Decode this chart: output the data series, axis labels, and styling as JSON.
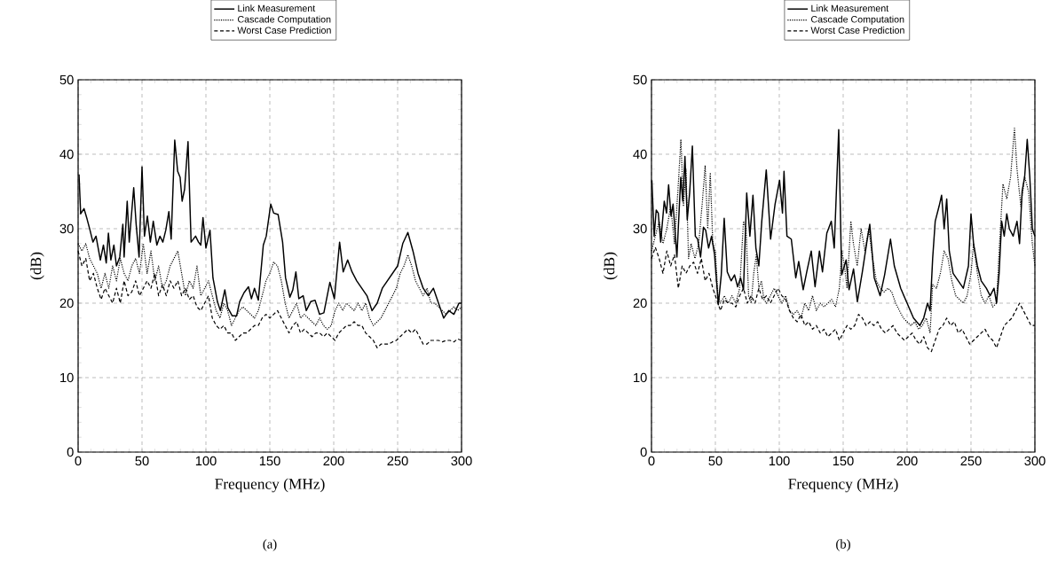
{
  "chart_data": [
    {
      "type": "line",
      "xlabel": "Frequency (MHz)",
      "ylabel": "(dB)",
      "xlim": [
        0,
        300
      ],
      "ylim": [
        0,
        50
      ],
      "xticks": [
        0,
        50,
        100,
        150,
        200,
        250,
        300
      ],
      "yticks": [
        0,
        10,
        20,
        30,
        40,
        50
      ],
      "grid": true,
      "legend": "top",
      "annotations": [
        "(a)"
      ],
      "series": [
        {
          "name": "Link Measurement",
          "color": "#000000",
          "line_style": "solid",
          "x": [
            0.7,
            2,
            4.6,
            7,
            9.3,
            11.6,
            14,
            17.4,
            19.8,
            22,
            23.7,
            25.6,
            28,
            30,
            32.6,
            35,
            36,
            38.4,
            40,
            43.5,
            45.4,
            47.7,
            50,
            51.9,
            54.2,
            56.5,
            58.8,
            61.6,
            64,
            66.3,
            68.6,
            71,
            72.8,
            75.6,
            77.9,
            79.8,
            81.4,
            83.3,
            86,
            88.4,
            91.9,
            94.2,
            96,
            97.7,
            100,
            103.2,
            105.5,
            109,
            111.3,
            114.8,
            117.1,
            120.6,
            124,
            126.4,
            129.8,
            133.3,
            135.6,
            138,
            141,
            144.9,
            147.2,
            150.7,
            153,
            156.5,
            160,
            162.3,
            165.7,
            168,
            170.4,
            172.7,
            176.1,
            178.5,
            182,
            185.4,
            188.9,
            192.3,
            197,
            200.5,
            204.6,
            207.4,
            210.9,
            214.3,
            218,
            222,
            226,
            230,
            234,
            238,
            242,
            246,
            250,
            254,
            258,
            262,
            266,
            270,
            274,
            278,
            282,
            286,
            290,
            294,
            298,
            300
          ],
          "values": [
            37.3,
            32,
            32.7,
            31.3,
            29.8,
            28.2,
            29,
            25.8,
            27.8,
            25.4,
            29.4,
            25.8,
            27.8,
            25,
            26.2,
            30.6,
            26.2,
            33.7,
            28.2,
            35.5,
            30.6,
            26.2,
            38.3,
            29,
            31.7,
            28.2,
            31,
            27.8,
            29,
            28.2,
            29.8,
            32.3,
            28.6,
            41.9,
            37.7,
            36.9,
            33.7,
            35.3,
            41.7,
            28.2,
            29,
            28.2,
            27.8,
            31.5,
            27.4,
            29.8,
            23.4,
            20.2,
            19,
            21.8,
            19.4,
            18.3,
            18.3,
            20.2,
            21.4,
            22.2,
            20.6,
            22,
            20.4,
            27.8,
            29,
            33.3,
            32.1,
            31.9,
            28.2,
            23.4,
            20.8,
            21.8,
            24.2,
            20.6,
            21,
            19,
            20.2,
            20.4,
            18.5,
            18.7,
            22.8,
            20.6,
            28.2,
            24.2,
            25.8,
            24.2,
            23,
            22,
            21,
            19,
            20,
            22,
            23,
            24,
            25,
            28,
            29.5,
            27,
            24,
            22,
            21,
            22,
            20,
            18,
            19,
            18.5,
            20,
            20
          ]
        },
        {
          "name": "Cascade Computation",
          "color": "#000000",
          "line_style": "dotted",
          "x": [
            0,
            3,
            6,
            9,
            12,
            15,
            18,
            21,
            24,
            27,
            30,
            33,
            36,
            39,
            42,
            45,
            48,
            51,
            54,
            57,
            60,
            63,
            66,
            69,
            72,
            75,
            78,
            81,
            84,
            87,
            90,
            93,
            96,
            99,
            102,
            105,
            108,
            111,
            114,
            117,
            120,
            123,
            126,
            129,
            132,
            135,
            138,
            141,
            144,
            147,
            150,
            153,
            156,
            159,
            162,
            165,
            168,
            171,
            174,
            177,
            180,
            183,
            186,
            189,
            192,
            195,
            198,
            201,
            204,
            207,
            210,
            213,
            216,
            219,
            222,
            225,
            228,
            231,
            234,
            237,
            240,
            243,
            246,
            249,
            252,
            255,
            258,
            261,
            264,
            267,
            270,
            273,
            276,
            279,
            282,
            285,
            288,
            291,
            294,
            297,
            300
          ],
          "values": [
            28,
            27,
            28,
            26,
            25,
            24,
            22,
            24,
            22,
            25,
            23,
            26,
            24,
            23,
            25,
            26,
            24,
            28,
            24,
            27,
            23,
            25,
            22,
            23,
            25,
            26,
            27,
            24,
            21,
            23,
            22,
            25,
            21,
            22,
            23,
            21,
            19,
            18,
            20,
            19,
            17,
            18,
            19,
            19.5,
            19,
            18.5,
            18,
            19,
            21,
            23,
            24,
            25.5,
            25,
            23,
            20,
            18,
            19,
            20,
            18,
            18.5,
            18,
            17.5,
            17,
            18,
            17,
            16.5,
            17,
            19,
            20,
            19,
            20,
            19.5,
            19,
            20,
            19,
            20,
            18,
            17,
            17.5,
            18,
            19,
            20,
            21,
            22,
            24,
            25,
            26.5,
            25,
            23,
            22,
            21,
            22,
            20,
            20,
            19.5,
            19,
            18.5,
            19,
            19.5,
            19,
            19.5
          ]
        },
        {
          "name": "Worst Case Prediction",
          "color": "#000000",
          "line_style": "dashed",
          "x": [
            0,
            3,
            6,
            9,
            12,
            15,
            18,
            21,
            24,
            27,
            30,
            33,
            36,
            39,
            42,
            45,
            48,
            51,
            54,
            57,
            60,
            63,
            66,
            69,
            72,
            75,
            78,
            81,
            84,
            87,
            90,
            93,
            96,
            99,
            102,
            105,
            108,
            111,
            114,
            117,
            120,
            123,
            126,
            129,
            132,
            135,
            138,
            141,
            144,
            147,
            150,
            153,
            156,
            159,
            162,
            165,
            168,
            171,
            174,
            177,
            180,
            183,
            186,
            189,
            192,
            195,
            198,
            201,
            204,
            207,
            210,
            213,
            216,
            219,
            222,
            225,
            228,
            231,
            234,
            237,
            240,
            243,
            246,
            249,
            252,
            255,
            258,
            261,
            264,
            267,
            270,
            273,
            276,
            279,
            282,
            285,
            288,
            291,
            294,
            297,
            300
          ],
          "values": [
            27,
            25,
            26,
            23,
            24,
            22,
            20.5,
            22,
            21,
            20,
            22,
            20,
            23,
            21,
            21.5,
            23,
            21,
            22,
            23,
            22,
            24,
            21,
            22.5,
            21,
            23,
            22,
            23,
            21,
            22,
            20.5,
            21,
            19.5,
            19,
            20,
            21,
            18,
            17,
            16.5,
            17,
            16,
            16,
            15,
            15.5,
            16,
            16,
            16.5,
            17,
            17,
            18,
            18.5,
            18,
            18.5,
            19,
            18,
            17,
            16,
            17,
            17.5,
            16,
            16.5,
            16,
            15.5,
            16,
            16,
            15.5,
            16,
            15.5,
            15,
            16,
            16.5,
            17,
            17,
            17.5,
            17,
            17,
            16,
            15.5,
            15,
            14,
            14.5,
            14.5,
            14.5,
            14.8,
            15,
            15.5,
            16,
            16.5,
            16,
            16.5,
            15.5,
            14.5,
            14.5,
            15,
            15,
            15,
            14.8,
            15,
            15,
            14.8,
            15.2,
            15
          ]
        }
      ]
    },
    {
      "type": "line",
      "xlabel": "Frequency (MHz)",
      "ylabel": "(dB)",
      "xlim": [
        0,
        300
      ],
      "ylim": [
        0,
        50
      ],
      "xticks": [
        0,
        50,
        100,
        150,
        200,
        250,
        300
      ],
      "yticks": [
        0,
        10,
        20,
        30,
        40,
        50
      ],
      "grid": true,
      "legend": "top",
      "annotations": [
        "(b)"
      ],
      "series": [
        {
          "name": "Link Measurement",
          "color": "#000000",
          "line_style": "solid",
          "x": [
            0.3,
            2.1,
            3.7,
            5.3,
            7.2,
            10,
            11.8,
            13.4,
            15.3,
            16.9,
            19.9,
            22.9,
            24.5,
            26.2,
            28,
            29.9,
            32,
            34.3,
            36.1,
            38.4,
            40.7,
            42.4,
            44.7,
            47,
            49.3,
            52.3,
            54.6,
            56.9,
            59.3,
            62.3,
            65,
            67.4,
            69.7,
            72,
            74.5,
            77,
            79.4,
            81.7,
            84,
            86.3,
            89.8,
            93.2,
            96.7,
            100.2,
            102.5,
            103.7,
            106,
            109.4,
            112.9,
            115.2,
            118.7,
            121.5,
            125,
            128,
            131.4,
            133.8,
            137.2,
            140.7,
            143,
            146.5,
            148.8,
            152.3,
            154.6,
            158.1,
            161.1,
            165,
            168.5,
            170.8,
            174.3,
            178.9,
            182.4,
            187,
            190,
            195,
            200,
            205,
            210,
            213,
            216,
            218,
            220,
            222,
            225,
            227,
            229,
            231,
            233,
            236,
            240,
            244,
            248,
            250,
            252,
            255,
            258,
            262,
            265,
            268,
            270,
            272,
            274,
            276,
            278,
            280,
            283,
            286,
            288,
            290,
            292,
            294,
            296,
            298,
            300
          ],
          "values": [
            36.5,
            29,
            32.5,
            32.1,
            28.2,
            33.7,
            32.1,
            35.9,
            31.7,
            33.3,
            26.2,
            36.9,
            33.7,
            39.7,
            31.2,
            34.9,
            41.1,
            29,
            28.6,
            26.2,
            30.2,
            29.8,
            27.4,
            29,
            26.6,
            19.8,
            23.8,
            31.4,
            24.2,
            23,
            23.8,
            22.2,
            23.4,
            21.8,
            34.8,
            29,
            34.5,
            27.4,
            25,
            31,
            37.9,
            28.6,
            33.3,
            36.5,
            32.1,
            37.7,
            29,
            28.6,
            23.4,
            25.6,
            21.8,
            24.2,
            27,
            22.2,
            27,
            24.2,
            29.4,
            31,
            27.4,
            43.3,
            23.8,
            25.8,
            21.8,
            24.6,
            20.2,
            24.2,
            28.2,
            30.6,
            23.4,
            21,
            23.8,
            28.6,
            25,
            22,
            20,
            18,
            17,
            18,
            20,
            19,
            26,
            31,
            33,
            34.5,
            30,
            34,
            27,
            24,
            23,
            22,
            25,
            32,
            28,
            25,
            23,
            22,
            21,
            22,
            20,
            24,
            31,
            29,
            32,
            30,
            29,
            31,
            28,
            35,
            37,
            42,
            37,
            30,
            29
          ]
        },
        {
          "name": "Cascade Computation",
          "color": "#000000",
          "line_style": "dotted",
          "x": [
            0,
            3,
            6,
            9,
            12,
            15,
            18,
            21,
            23,
            25,
            27,
            29,
            31,
            34,
            37,
            40,
            42,
            44,
            46,
            48,
            50,
            52,
            54,
            57,
            60,
            63,
            66,
            69,
            72,
            74,
            76,
            78,
            80,
            82,
            84,
            86,
            88,
            90,
            93,
            96,
            99,
            102,
            105,
            108,
            111,
            114,
            117,
            120,
            123,
            126,
            129,
            132,
            135,
            138,
            141,
            144,
            147,
            149,
            151,
            153,
            156,
            158,
            161,
            164,
            167,
            170,
            173,
            176,
            179,
            182,
            185,
            188,
            191,
            194,
            197,
            200,
            203,
            206,
            209,
            212,
            215,
            218,
            220,
            223,
            226,
            229,
            232,
            235,
            238,
            241,
            244,
            247,
            250,
            252,
            255,
            258,
            261,
            264,
            267,
            270,
            272,
            275,
            278,
            281,
            284,
            286,
            289,
            292,
            295,
            298,
            300
          ],
          "values": [
            27,
            29,
            31,
            28,
            30,
            33,
            28,
            36,
            42,
            33,
            38,
            26,
            28,
            26,
            28,
            34,
            38.5,
            30,
            37.5,
            28,
            27,
            21,
            20,
            21,
            20,
            21,
            20,
            22,
            31,
            30,
            21,
            20,
            24,
            26.5,
            22,
            23,
            20.5,
            20,
            21,
            22,
            21,
            20,
            21,
            19,
            18.5,
            19,
            18,
            20,
            19,
            21,
            19,
            20,
            19.5,
            20,
            20.5,
            19.5,
            22,
            27,
            25,
            22,
            31,
            28,
            25,
            30,
            27,
            30,
            26,
            23,
            22,
            21.5,
            22,
            21.5,
            20,
            19,
            18,
            17.5,
            17,
            17.5,
            16.5,
            17,
            18,
            16,
            22.5,
            22,
            24,
            27,
            26,
            23,
            21,
            20.5,
            20,
            21,
            24,
            28,
            24,
            21,
            20,
            21,
            19.5,
            20,
            27,
            36,
            34,
            37,
            43.5,
            38,
            33,
            37,
            35,
            28,
            25
          ]
        },
        {
          "name": "Worst Case Prediction",
          "color": "#000000",
          "line_style": "dashed",
          "x": [
            0,
            3,
            6,
            9,
            12,
            15,
            18,
            21,
            24,
            27,
            30,
            33,
            36,
            39,
            42,
            45,
            48,
            51,
            54,
            57,
            60,
            63,
            66,
            69,
            72,
            75,
            78,
            81,
            84,
            87,
            90,
            93,
            96,
            99,
            102,
            105,
            108,
            111,
            114,
            117,
            120,
            123,
            126,
            129,
            132,
            135,
            138,
            141,
            144,
            147,
            150,
            153,
            156,
            159,
            162,
            165,
            168,
            171,
            174,
            177,
            180,
            183,
            186,
            189,
            192,
            195,
            198,
            201,
            204,
            207,
            210,
            213,
            216,
            219,
            222,
            225,
            228,
            231,
            234,
            237,
            240,
            243,
            246,
            249,
            252,
            255,
            258,
            261,
            264,
            267,
            270,
            273,
            276,
            279,
            282,
            285,
            288,
            291,
            294,
            297,
            300
          ],
          "values": [
            26,
            27.5,
            26,
            24,
            27,
            25,
            26.5,
            22,
            25,
            24,
            25,
            25.5,
            24,
            26,
            23,
            24,
            22,
            20.5,
            19,
            20.5,
            20,
            20,
            19.5,
            21,
            22,
            20,
            21,
            20,
            22,
            20.5,
            21,
            20,
            21,
            22,
            21,
            20.5,
            19,
            18,
            17.5,
            18.5,
            17,
            17.5,
            16.5,
            17,
            16,
            16.5,
            15.5,
            16,
            16.5,
            15,
            16,
            17,
            16.5,
            17,
            18.5,
            18,
            17,
            17.5,
            17,
            17.5,
            16.5,
            16,
            16.5,
            17,
            16,
            15.5,
            15,
            15.5,
            16,
            15,
            14.5,
            15.5,
            14,
            13.5,
            15,
            16.5,
            17,
            18,
            17,
            17.5,
            16,
            16.5,
            15.5,
            14.5,
            15,
            15.5,
            16,
            16.5,
            15.5,
            15,
            14,
            15.5,
            17,
            17.5,
            18,
            19,
            20,
            19,
            18,
            17,
            17
          ]
        }
      ]
    }
  ]
}
